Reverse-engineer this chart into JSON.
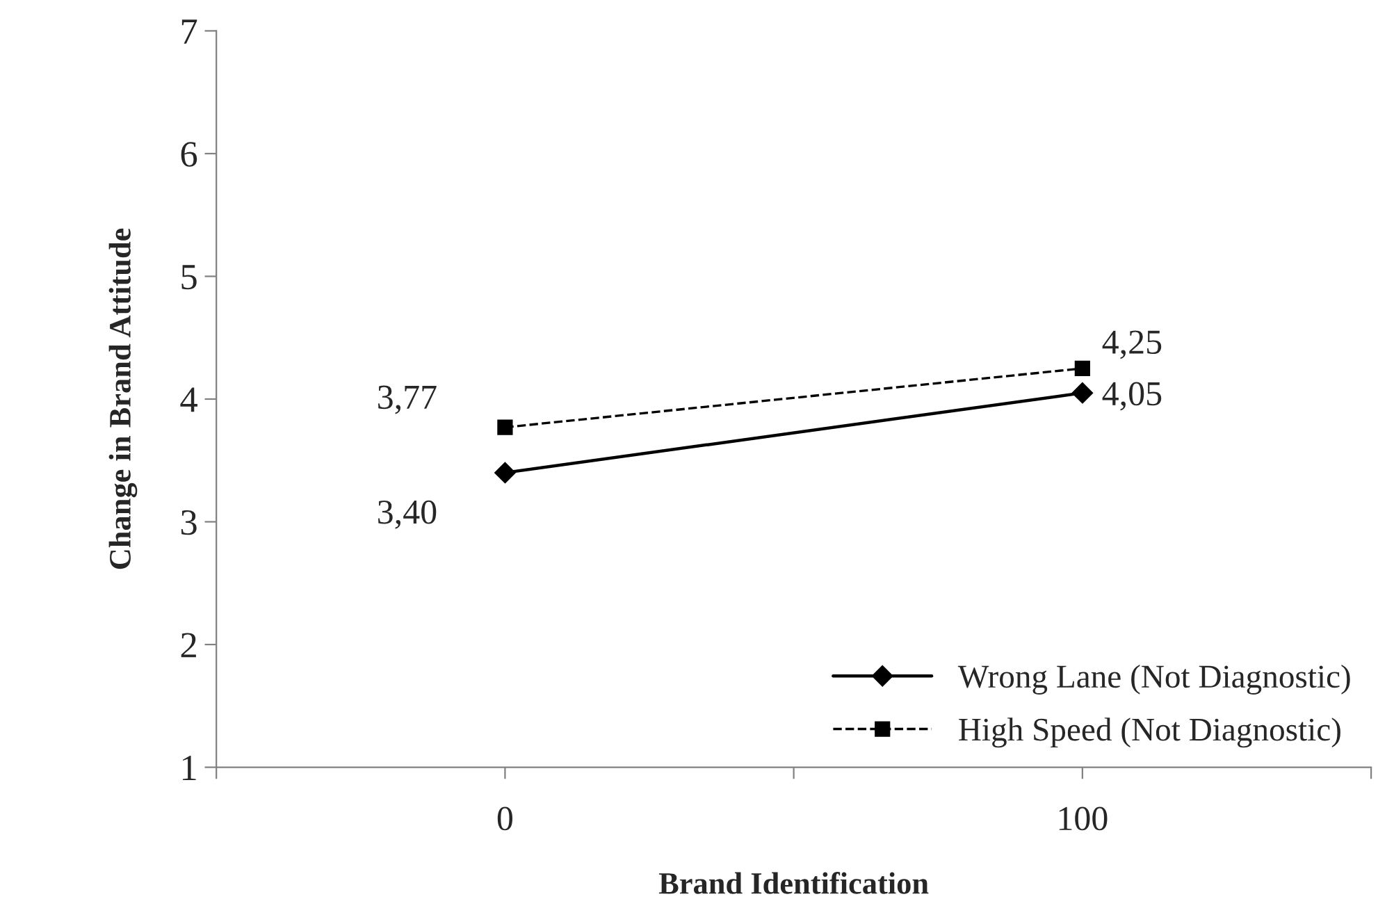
{
  "chart_data": {
    "type": "line",
    "xlabel": "Brand Identification",
    "ylabel": "Change in Brand Attitude",
    "x": [
      0,
      100
    ],
    "xlim": [
      -50,
      150
    ],
    "xticks": [
      {
        "value": -50,
        "label": null
      },
      0,
      {
        "value": 50,
        "label": null
      },
      100,
      {
        "value": 150,
        "label": null
      }
    ],
    "ylim": [
      1,
      7
    ],
    "yticks": [
      1,
      2,
      3,
      4,
      5,
      6,
      7
    ],
    "grid": false,
    "legend": "bottom right",
    "series": [
      {
        "name": "Wrong Lane (Not Diagnostic)",
        "color": "#000000",
        "values": [
          3.4,
          4.05
        ],
        "value_labels": [
          "3,40",
          "4,05"
        ],
        "marker": "diamond",
        "line_style": "solid"
      },
      {
        "name": "High Speed (Not Diagnostic)",
        "color": "#000000",
        "values": [
          3.77,
          4.25
        ],
        "value_labels": [
          "3,77",
          "4,25"
        ],
        "marker": "square",
        "line_style": "dashed"
      }
    ]
  }
}
